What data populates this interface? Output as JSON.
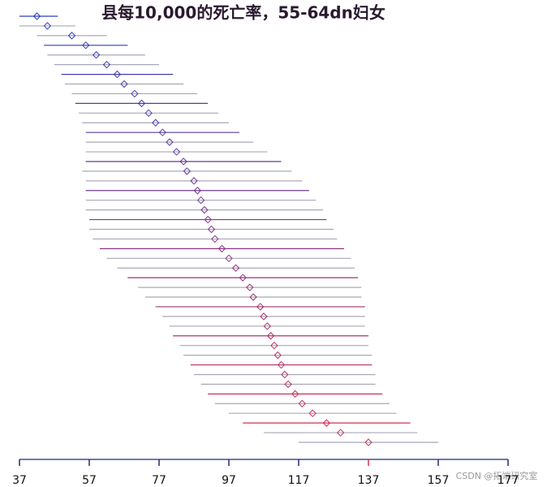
{
  "chart_data": {
    "type": "caterpillar",
    "title": "县每10,000的死亡率，55-64dn妇女",
    "watermark": "CSDN @拓端研究室",
    "estimates": [
      42,
      45,
      52,
      56,
      59,
      62,
      65,
      67,
      70,
      72,
      74,
      76,
      78,
      80,
      82,
      84,
      85,
      87,
      88,
      89,
      90,
      91,
      92,
      93,
      95,
      97,
      99,
      101,
      103,
      104,
      106,
      107,
      108,
      109,
      110,
      111,
      112,
      113,
      114,
      116,
      118,
      121,
      125,
      129,
      137
    ],
    "lower": [
      37,
      37,
      42,
      44,
      45,
      47,
      49,
      50,
      52,
      53,
      54,
      55,
      56,
      56,
      56,
      56,
      55,
      56,
      56,
      56,
      56,
      57,
      57,
      58,
      60,
      62,
      65,
      68,
      71,
      73,
      76,
      78,
      80,
      81,
      83,
      84,
      86,
      87,
      89,
      91,
      93,
      97,
      101,
      107,
      117
    ],
    "upper": [
      48,
      53,
      62,
      68,
      73,
      77,
      81,
      84,
      88,
      91,
      94,
      97,
      100,
      104,
      108,
      112,
      115,
      118,
      120,
      122,
      124,
      125,
      127,
      128,
      130,
      132,
      133,
      134,
      135,
      135,
      136,
      136,
      136,
      137,
      137,
      138,
      138,
      139,
      139,
      141,
      143,
      145,
      149,
      151,
      157
    ],
    "colors": [
      "#2a3fbf",
      "#d9304f"
    ],
    "interval_color": "#a8a8b8",
    "xlim": [
      37,
      177
    ],
    "xticks": [
      37,
      57,
      77,
      97,
      117,
      137,
      157,
      177
    ],
    "highlight_tick": 137
  }
}
